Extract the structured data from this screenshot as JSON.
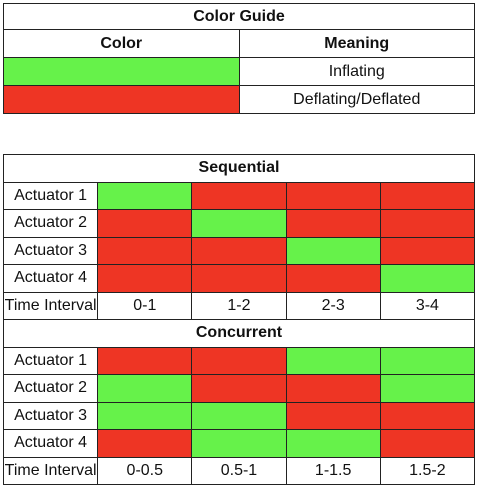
{
  "color_guide": {
    "title": "Color Guide",
    "headers": {
      "color": "Color",
      "meaning": "Meaning"
    },
    "rows": [
      {
        "color": "#66f24a",
        "meaning": "Inflating"
      },
      {
        "color": "#ee3524",
        "meaning": "Deflating/Deflated"
      }
    ]
  },
  "colors": {
    "inflating": "#66f24a",
    "deflating": "#ee3524"
  },
  "sequential": {
    "title": "Sequential",
    "rows": [
      {
        "label": "Actuator 1",
        "states": [
          "G",
          "R",
          "R",
          "R"
        ]
      },
      {
        "label": "Actuator 2",
        "states": [
          "R",
          "G",
          "R",
          "R"
        ]
      },
      {
        "label": "Actuator 3",
        "states": [
          "R",
          "R",
          "G",
          "R"
        ]
      },
      {
        "label": "Actuator 4",
        "states": [
          "R",
          "R",
          "R",
          "G"
        ]
      }
    ],
    "time_label": "Time Interval",
    "intervals": [
      "0-1",
      "1-2",
      "2-3",
      "3-4"
    ]
  },
  "concurrent": {
    "title": "Concurrent",
    "rows": [
      {
        "label": "Actuator 1",
        "states": [
          "R",
          "R",
          "G",
          "G"
        ]
      },
      {
        "label": "Actuator 2",
        "states": [
          "G",
          "R",
          "R",
          "G"
        ]
      },
      {
        "label": "Actuator 3",
        "states": [
          "G",
          "G",
          "R",
          "R"
        ]
      },
      {
        "label": "Actuator 4",
        "states": [
          "R",
          "G",
          "G",
          "R"
        ]
      }
    ],
    "time_label": "Time Interval",
    "intervals": [
      "0-0.5",
      "0.5-1",
      "1-1.5",
      "1.5-2"
    ]
  }
}
